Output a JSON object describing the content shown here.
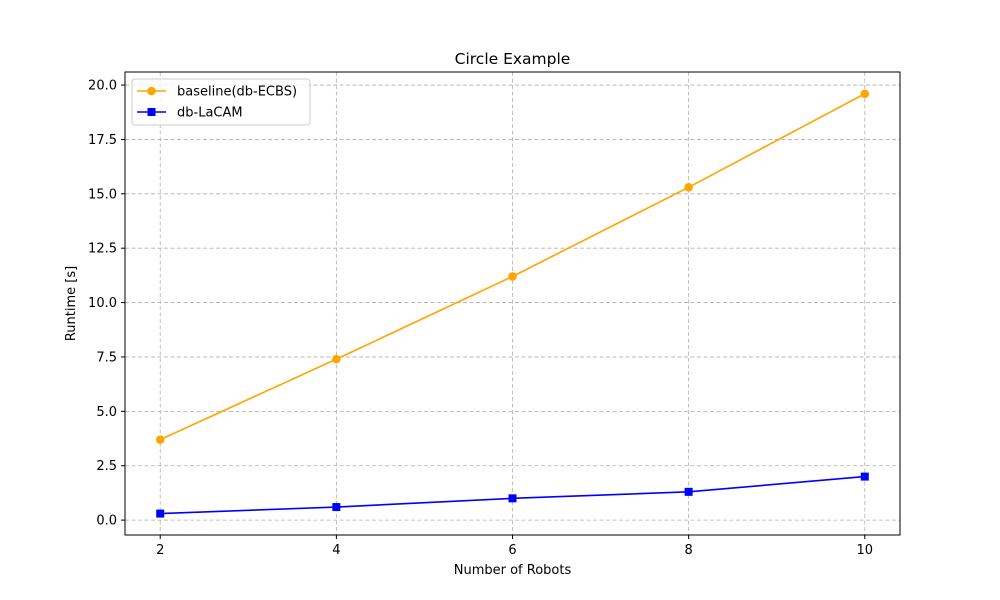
{
  "chart_data": {
    "type": "line",
    "title": "Circle Example",
    "xlabel": "Number of Robots",
    "ylabel": "Runtime [s]",
    "x": [
      2,
      4,
      6,
      8,
      10
    ],
    "x_ticks": [
      "2",
      "4",
      "6",
      "8",
      "10"
    ],
    "y_ticks": [
      "0.0",
      "2.5",
      "5.0",
      "7.5",
      "10.0",
      "12.5",
      "15.0",
      "17.5",
      "20.0"
    ],
    "xlim": [
      1.6,
      10.4
    ],
    "ylim": [
      -0.685,
      20.6
    ],
    "grid": true,
    "legend_position": "top-left",
    "series": [
      {
        "name": "baseline(db-ECBS)",
        "values": [
          3.7,
          7.4,
          11.2,
          15.3,
          19.6
        ],
        "color": "#ffa500",
        "marker": "circle"
      },
      {
        "name": "db-LaCAM",
        "values": [
          0.3,
          0.6,
          1.0,
          1.3,
          2.0
        ],
        "color": "#0000ff",
        "marker": "square"
      }
    ]
  }
}
